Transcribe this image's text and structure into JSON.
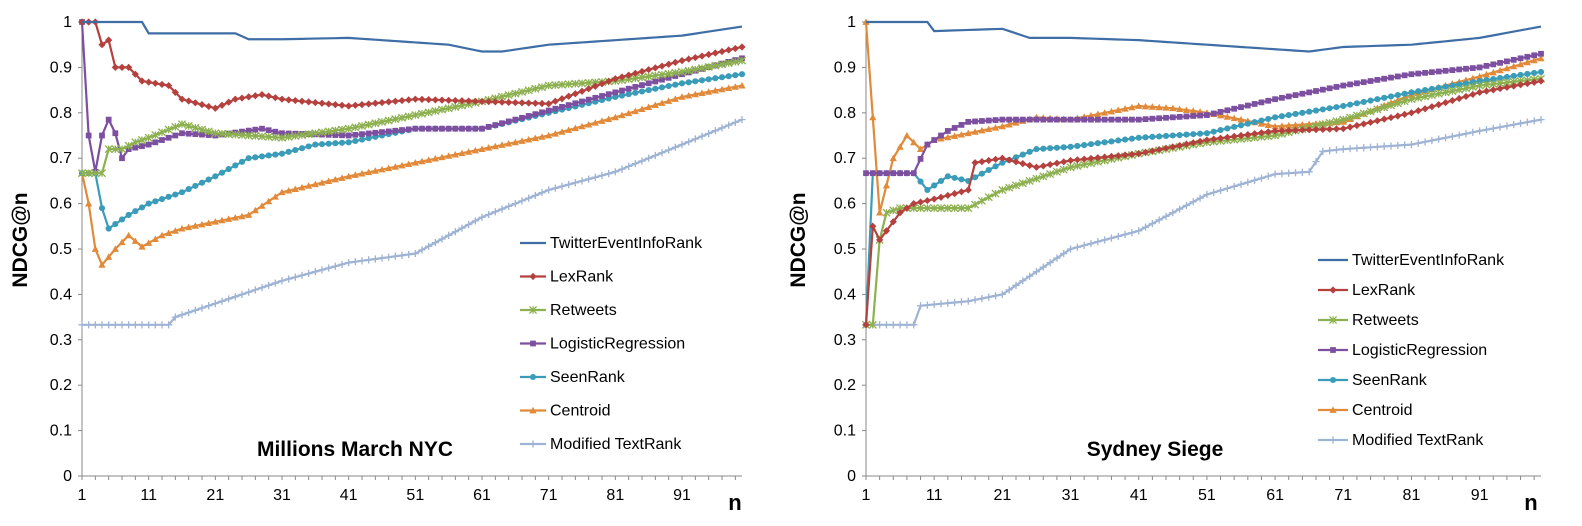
{
  "chart_data": [
    {
      "type": "line",
      "title": "Millions March NYC",
      "xlabel": "n",
      "ylabel": "NDCG@n",
      "ylim": [
        0,
        1
      ],
      "xlim": [
        1,
        100
      ],
      "x_tick_labels": [
        "1",
        "11",
        "21",
        "31",
        "41",
        "51",
        "61",
        "71",
        "81",
        "91"
      ],
      "y_tick_labels": [
        "0",
        "0.1",
        "0.2",
        "0.3",
        "0.4",
        "0.5",
        "0.6",
        "0.7",
        "0.8",
        "0.9",
        "1"
      ],
      "grid": false,
      "legend_position": "lower-right",
      "series": [
        {
          "name": "TwitterEventInfoRank",
          "color": "#3f6ea6",
          "marker": "none",
          "points": [
            [
              1,
              1
            ],
            [
              10,
              1
            ],
            [
              11,
              0.975
            ],
            [
              21,
              0.975
            ],
            [
              24,
              0.975
            ],
            [
              26,
              0.962
            ],
            [
              31,
              0.962
            ],
            [
              41,
              0.965
            ],
            [
              51,
              0.955
            ],
            [
              56,
              0.95
            ],
            [
              61,
              0.935
            ],
            [
              64,
              0.935
            ],
            [
              71,
              0.95
            ],
            [
              81,
              0.96
            ],
            [
              91,
              0.97
            ],
            [
              100,
              0.99
            ]
          ]
        },
        {
          "name": "LexRank",
          "color": "#b5413e",
          "marker": "diamond",
          "points": [
            [
              1,
              1
            ],
            [
              3,
              1
            ],
            [
              4,
              0.95
            ],
            [
              5,
              0.96
            ],
            [
              6,
              0.9
            ],
            [
              8,
              0.9
            ],
            [
              10,
              0.87
            ],
            [
              14,
              0.86
            ],
            [
              16,
              0.83
            ],
            [
              21,
              0.81
            ],
            [
              24,
              0.83
            ],
            [
              28,
              0.84
            ],
            [
              31,
              0.83
            ],
            [
              41,
              0.815
            ],
            [
              51,
              0.83
            ],
            [
              61,
              0.825
            ],
            [
              71,
              0.82
            ],
            [
              81,
              0.875
            ],
            [
              91,
              0.915
            ],
            [
              100,
              0.945
            ]
          ]
        },
        {
          "name": "Retweets",
          "color": "#8db050",
          "marker": "star",
          "points": [
            [
              1,
              0.667
            ],
            [
              2,
              0.667
            ],
            [
              4,
              0.667
            ],
            [
              5,
              0.72
            ],
            [
              7,
              0.72
            ],
            [
              9,
              0.735
            ],
            [
              11,
              0.745
            ],
            [
              16,
              0.775
            ],
            [
              21,
              0.755
            ],
            [
              31,
              0.745
            ],
            [
              41,
              0.765
            ],
            [
              51,
              0.795
            ],
            [
              61,
              0.825
            ],
            [
              71,
              0.86
            ],
            [
              81,
              0.87
            ],
            [
              91,
              0.89
            ],
            [
              100,
              0.915
            ]
          ]
        },
        {
          "name": "LogisticRegression",
          "color": "#7c4fa0",
          "marker": "square",
          "points": [
            [
              1,
              1
            ],
            [
              2,
              0.75
            ],
            [
              3,
              0.67
            ],
            [
              4,
              0.75
            ],
            [
              5,
              0.785
            ],
            [
              6,
              0.755
            ],
            [
              7,
              0.7
            ],
            [
              8,
              0.72
            ],
            [
              11,
              0.73
            ],
            [
              16,
              0.755
            ],
            [
              21,
              0.75
            ],
            [
              28,
              0.765
            ],
            [
              31,
              0.755
            ],
            [
              41,
              0.75
            ],
            [
              51,
              0.765
            ],
            [
              61,
              0.765
            ],
            [
              71,
              0.805
            ],
            [
              81,
              0.845
            ],
            [
              91,
              0.885
            ],
            [
              100,
              0.92
            ]
          ]
        },
        {
          "name": "SeenRank",
          "color": "#3a9cb8",
          "marker": "circle",
          "points": [
            [
              1,
              0.667
            ],
            [
              3,
              0.667
            ],
            [
              4,
              0.59
            ],
            [
              5,
              0.545
            ],
            [
              8,
              0.575
            ],
            [
              11,
              0.6
            ],
            [
              16,
              0.625
            ],
            [
              21,
              0.66
            ],
            [
              26,
              0.7
            ],
            [
              31,
              0.71
            ],
            [
              36,
              0.73
            ],
            [
              41,
              0.735
            ],
            [
              51,
              0.765
            ],
            [
              61,
              0.765
            ],
            [
              71,
              0.8
            ],
            [
              81,
              0.835
            ],
            [
              91,
              0.865
            ],
            [
              100,
              0.885
            ]
          ]
        },
        {
          "name": "Centroid",
          "color": "#e08a3a",
          "marker": "triangle",
          "points": [
            [
              1,
              0.667
            ],
            [
              2,
              0.6
            ],
            [
              3,
              0.5
            ],
            [
              4,
              0.465
            ],
            [
              6,
              0.5
            ],
            [
              8,
              0.53
            ],
            [
              10,
              0.505
            ],
            [
              13,
              0.53
            ],
            [
              16,
              0.545
            ],
            [
              21,
              0.56
            ],
            [
              26,
              0.575
            ],
            [
              31,
              0.625
            ],
            [
              41,
              0.66
            ],
            [
              51,
              0.69
            ],
            [
              61,
              0.72
            ],
            [
              71,
              0.75
            ],
            [
              81,
              0.79
            ],
            [
              91,
              0.835
            ],
            [
              100,
              0.86
            ]
          ]
        },
        {
          "name": "Modified TextRank",
          "color": "#9fb3d4",
          "marker": "plus",
          "points": [
            [
              1,
              0.333
            ],
            [
              14,
              0.333
            ],
            [
              15,
              0.35
            ],
            [
              21,
              0.38
            ],
            [
              31,
              0.43
            ],
            [
              41,
              0.47
            ],
            [
              51,
              0.49
            ],
            [
              61,
              0.57
            ],
            [
              71,
              0.63
            ],
            [
              81,
              0.67
            ],
            [
              91,
              0.73
            ],
            [
              100,
              0.785
            ]
          ]
        }
      ]
    },
    {
      "type": "line",
      "title": "Sydney Siege",
      "xlabel": "n",
      "ylabel": "NDCG@n",
      "ylim": [
        0,
        1
      ],
      "xlim": [
        1,
        100
      ],
      "x_tick_labels": [
        "1",
        "11",
        "21",
        "31",
        "41",
        "51",
        "61",
        "71",
        "81",
        "91"
      ],
      "y_tick_labels": [
        "0",
        "0.1",
        "0.2",
        "0.3",
        "0.4",
        "0.5",
        "0.6",
        "0.7",
        "0.8",
        "0.9",
        "1"
      ],
      "grid": false,
      "legend_position": "right",
      "series": [
        {
          "name": "TwitterEventInfoRank",
          "color": "#3f6ea6",
          "marker": "none",
          "points": [
            [
              1,
              1
            ],
            [
              10,
              1
            ],
            [
              11,
              0.98
            ],
            [
              21,
              0.985
            ],
            [
              25,
              0.965
            ],
            [
              31,
              0.965
            ],
            [
              41,
              0.96
            ],
            [
              51,
              0.95
            ],
            [
              56,
              0.945
            ],
            [
              61,
              0.94
            ],
            [
              66,
              0.935
            ],
            [
              71,
              0.945
            ],
            [
              81,
              0.95
            ],
            [
              91,
              0.965
            ],
            [
              100,
              0.99
            ]
          ]
        },
        {
          "name": "LexRank",
          "color": "#b5413e",
          "marker": "diamond",
          "points": [
            [
              1,
              0.333
            ],
            [
              2,
              0.55
            ],
            [
              3,
              0.52
            ],
            [
              4,
              0.54
            ],
            [
              6,
              0.58
            ],
            [
              8,
              0.6
            ],
            [
              11,
              0.61
            ],
            [
              16,
              0.63
            ],
            [
              17,
              0.69
            ],
            [
              21,
              0.7
            ],
            [
              26,
              0.68
            ],
            [
              31,
              0.695
            ],
            [
              41,
              0.71
            ],
            [
              51,
              0.74
            ],
            [
              61,
              0.76
            ],
            [
              71,
              0.765
            ],
            [
              81,
              0.8
            ],
            [
              91,
              0.845
            ],
            [
              100,
              0.87
            ]
          ]
        },
        {
          "name": "Retweets",
          "color": "#8db050",
          "marker": "star",
          "points": [
            [
              1,
              0.333
            ],
            [
              2,
              0.333
            ],
            [
              3,
              0.52
            ],
            [
              4,
              0.58
            ],
            [
              6,
              0.59
            ],
            [
              11,
              0.59
            ],
            [
              16,
              0.59
            ],
            [
              21,
              0.63
            ],
            [
              31,
              0.68
            ],
            [
              41,
              0.71
            ],
            [
              51,
              0.735
            ],
            [
              61,
              0.75
            ],
            [
              71,
              0.785
            ],
            [
              81,
              0.83
            ],
            [
              91,
              0.86
            ],
            [
              100,
              0.875
            ]
          ]
        },
        {
          "name": "LogisticRegression",
          "color": "#7c4fa0",
          "marker": "square",
          "points": [
            [
              1,
              0.667
            ],
            [
              8,
              0.667
            ],
            [
              10,
              0.73
            ],
            [
              13,
              0.76
            ],
            [
              16,
              0.78
            ],
            [
              21,
              0.785
            ],
            [
              31,
              0.785
            ],
            [
              41,
              0.785
            ],
            [
              51,
              0.795
            ],
            [
              61,
              0.83
            ],
            [
              71,
              0.86
            ],
            [
              81,
              0.885
            ],
            [
              91,
              0.9
            ],
            [
              100,
              0.93
            ]
          ]
        },
        {
          "name": "SeenRank",
          "color": "#3a9cb8",
          "marker": "circle",
          "points": [
            [
              1,
              0.333
            ],
            [
              2,
              0.667
            ],
            [
              8,
              0.667
            ],
            [
              10,
              0.63
            ],
            [
              13,
              0.66
            ],
            [
              16,
              0.65
            ],
            [
              21,
              0.69
            ],
            [
              26,
              0.72
            ],
            [
              31,
              0.725
            ],
            [
              41,
              0.745
            ],
            [
              51,
              0.755
            ],
            [
              61,
              0.79
            ],
            [
              71,
              0.815
            ],
            [
              81,
              0.845
            ],
            [
              91,
              0.87
            ],
            [
              100,
              0.89
            ]
          ]
        },
        {
          "name": "Centroid",
          "color": "#e08a3a",
          "marker": "triangle",
          "points": [
            [
              1,
              1
            ],
            [
              3,
              0.58
            ],
            [
              5,
              0.7
            ],
            [
              7,
              0.75
            ],
            [
              9,
              0.72
            ],
            [
              11,
              0.74
            ],
            [
              21,
              0.77
            ],
            [
              26,
              0.79
            ],
            [
              31,
              0.785
            ],
            [
              41,
              0.815
            ],
            [
              46,
              0.81
            ],
            [
              51,
              0.8
            ],
            [
              61,
              0.77
            ],
            [
              71,
              0.78
            ],
            [
              81,
              0.84
            ],
            [
              91,
              0.88
            ],
            [
              100,
              0.92
            ]
          ]
        },
        {
          "name": "Modified TextRank",
          "color": "#9fb3d4",
          "marker": "plus",
          "points": [
            [
              1,
              0.333
            ],
            [
              8,
              0.333
            ],
            [
              9,
              0.375
            ],
            [
              16,
              0.385
            ],
            [
              21,
              0.4
            ],
            [
              31,
              0.5
            ],
            [
              41,
              0.54
            ],
            [
              51,
              0.62
            ],
            [
              61,
              0.665
            ],
            [
              66,
              0.67
            ],
            [
              68,
              0.715
            ],
            [
              71,
              0.72
            ],
            [
              81,
              0.73
            ],
            [
              91,
              0.76
            ],
            [
              100,
              0.785
            ]
          ]
        }
      ]
    }
  ]
}
